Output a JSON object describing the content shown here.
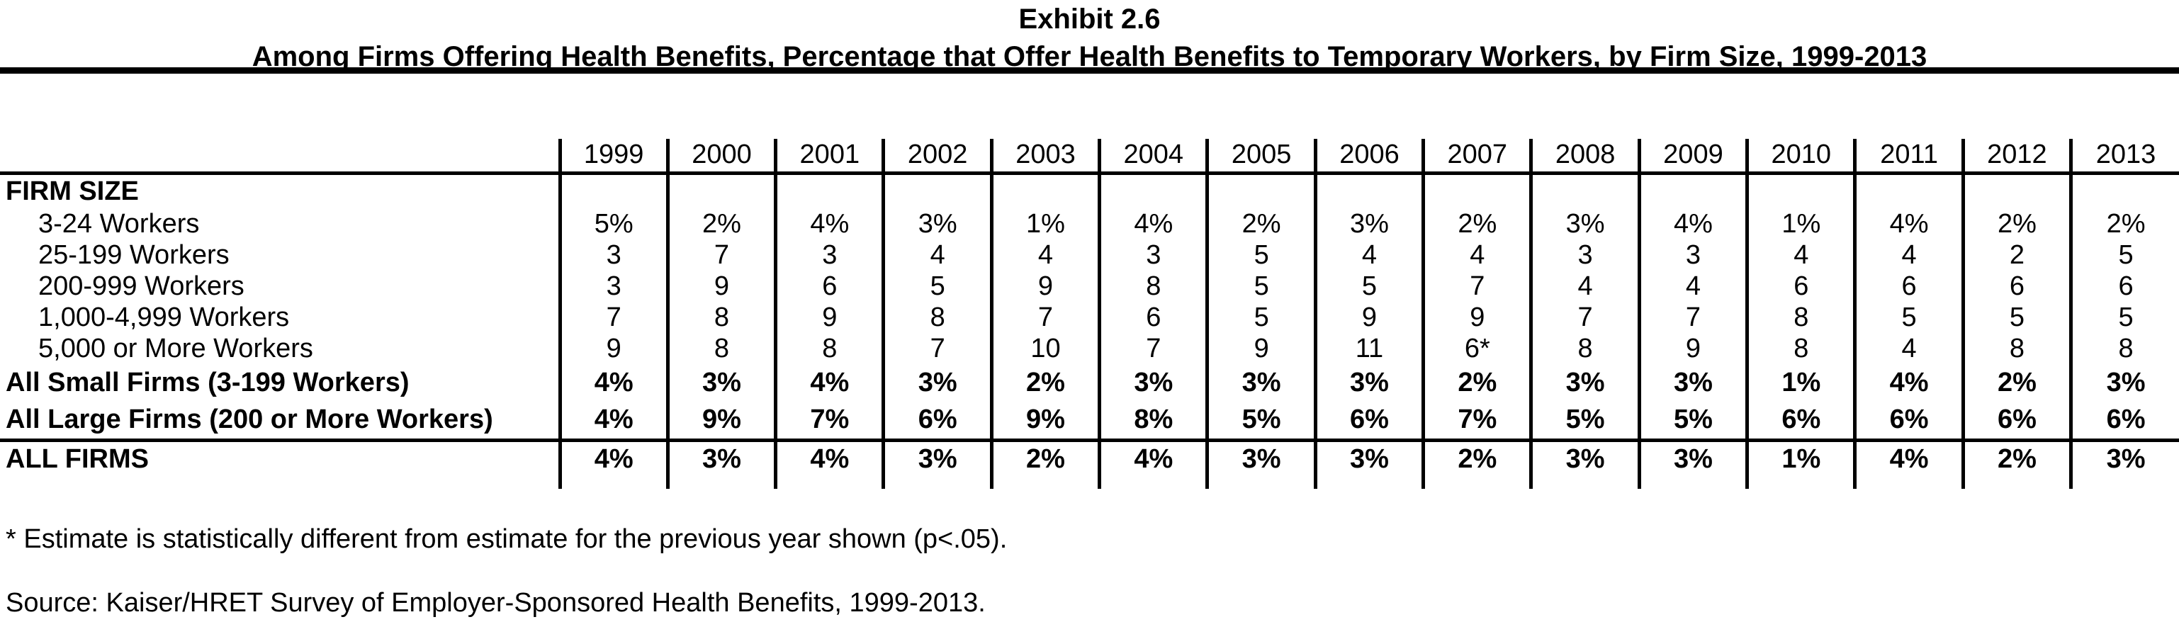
{
  "title": "Exhibit 2.6",
  "subtitle": "Among Firms Offering Health Benefits, Percentage that Offer Health Benefits to Temporary Workers, by Firm Size, 1999-2013",
  "table": {
    "years": [
      "1999",
      "2000",
      "2001",
      "2002",
      "2003",
      "2004",
      "2005",
      "2006",
      "2007",
      "2008",
      "2009",
      "2010",
      "2011",
      "2012",
      "2013"
    ],
    "section_header": "FIRM SIZE",
    "rows": [
      {
        "label": "3-24 Workers",
        "kind": "detail",
        "values": [
          "5%",
          "2%",
          "4%",
          "3%",
          "1%",
          "4%",
          "2%",
          "3%",
          "2%",
          "3%",
          "4%",
          "1%",
          "4%",
          "2%",
          "2%"
        ]
      },
      {
        "label": "25-199 Workers",
        "kind": "detail",
        "values": [
          "3",
          "7",
          "3",
          "4",
          "4",
          "3",
          "5",
          "4",
          "4",
          "3",
          "3",
          "4",
          "4",
          "2",
          "5"
        ]
      },
      {
        "label": "200-999 Workers",
        "kind": "detail",
        "values": [
          "3",
          "9",
          "6",
          "5",
          "9",
          "8",
          "5",
          "5",
          "7",
          "4",
          "4",
          "6",
          "6",
          "6",
          "6"
        ]
      },
      {
        "label": "1,000-4,999 Workers",
        "kind": "detail",
        "values": [
          "7",
          "8",
          "9",
          "8",
          "7",
          "6",
          "5",
          "9",
          "9",
          "7",
          "7",
          "8",
          "5",
          "5",
          "5"
        ]
      },
      {
        "label": "5,000 or More Workers",
        "kind": "detail",
        "values": [
          "9",
          "8",
          "8",
          "7",
          "10",
          "7",
          "9",
          "11",
          "6*",
          "8",
          "9",
          "8",
          "4",
          "8",
          "8"
        ]
      },
      {
        "label": "All Small Firms (3-199 Workers)",
        "kind": "summary",
        "values": [
          "4%",
          "3%",
          "4%",
          "3%",
          "2%",
          "3%",
          "3%",
          "3%",
          "2%",
          "3%",
          "3%",
          "1%",
          "4%",
          "2%",
          "3%"
        ]
      },
      {
        "label": "All Large Firms (200 or More Workers)",
        "kind": "summary",
        "values": [
          "4%",
          "9%",
          "7%",
          "6%",
          "9%",
          "8%",
          "5%",
          "6%",
          "7%",
          "5%",
          "5%",
          "6%",
          "6%",
          "6%",
          "6%"
        ]
      },
      {
        "label": "ALL FIRMS",
        "kind": "total",
        "values": [
          "4%",
          "3%",
          "4%",
          "3%",
          "2%",
          "4%",
          "3%",
          "3%",
          "2%",
          "3%",
          "3%",
          "1%",
          "4%",
          "2%",
          "3%"
        ]
      }
    ]
  },
  "footnotes": {
    "asterisk_note": "* Estimate is statistically different from estimate for the previous year shown (p<.05).",
    "source": "Source: Kaiser/HRET Survey of Employer-Sponsored Health Benefits, 1999-2013."
  }
}
